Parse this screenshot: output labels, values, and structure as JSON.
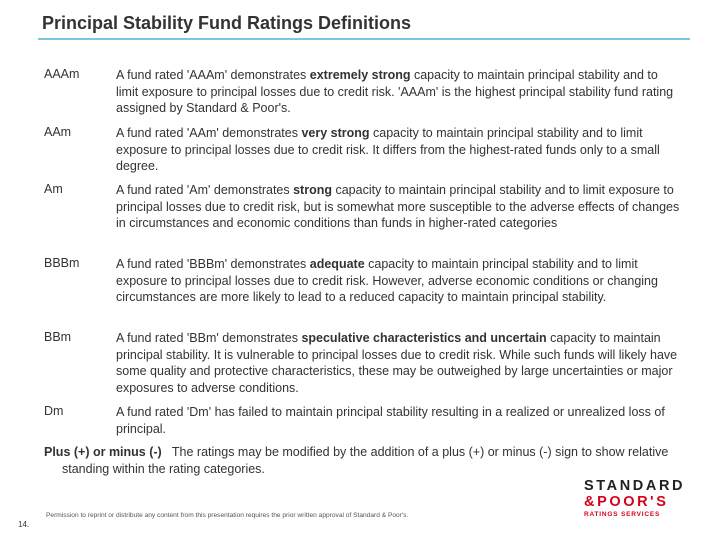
{
  "title": "Principal Stability Fund Ratings Definitions",
  "ratings": [
    {
      "code": "AAAm",
      "definition": [
        "A fund rated 'AAAm' demonstrates ",
        "extremely strong",
        " capacity to maintain principal stability and to limit exposure to principal losses due to credit risk. 'AAAm' is the highest principal stability fund rating assigned by Standard & Poor's."
      ]
    },
    {
      "code": "AAm",
      "definition": [
        "A fund rated 'AAm' demonstrates ",
        "very strong",
        " capacity to maintain principal stability and to limit exposure to principal losses due to credit risk. It differs from the highest-rated funds only to a small degree."
      ]
    },
    {
      "code": "Am",
      "definition": [
        "A fund rated 'Am' demonstrates ",
        "strong",
        " capacity to maintain principal stability and to limit exposure to principal losses due to credit risk, but is somewhat more susceptible to the adverse effects of changes in circumstances and economic conditions than funds in higher-rated categories"
      ]
    },
    {
      "code": "BBBm",
      "definition": [
        "A fund rated 'BBBm' demonstrates ",
        "adequate",
        " capacity to maintain principal stability and to limit exposure to principal losses due to credit risk. However, adverse economic conditions or changing circumstances are more likely to lead to a reduced capacity to maintain principal stability."
      ]
    },
    {
      "code": "BBm",
      "definition": [
        "A fund rated 'BBm' demonstrates ",
        "speculative characteristics and uncertain",
        " capacity to maintain principal stability. It is vulnerable to principal losses due to credit risk. While such funds will likely have some quality and protective characteristics, these may be outweighed by large uncertainties or major exposures to adverse conditions."
      ]
    },
    {
      "code": "Dm",
      "definition": [
        "A fund rated 'Dm' has failed to maintain principal stability resulting in a realized or unrealized loss of principal."
      ]
    }
  ],
  "note": {
    "label": "Plus (+) or minus (-)",
    "text": "The ratings may be modified by the addition of a plus (+) or minus (-) sign to show relative standing within the rating categories."
  },
  "footer": {
    "page": "14.",
    "permission": "Permission to reprint or distribute any content from this presentation requires the prior written approval of Standard & Poor's.",
    "logo": [
      "STANDARD",
      "&POOR'S",
      "RATINGS SERVICES"
    ]
  }
}
